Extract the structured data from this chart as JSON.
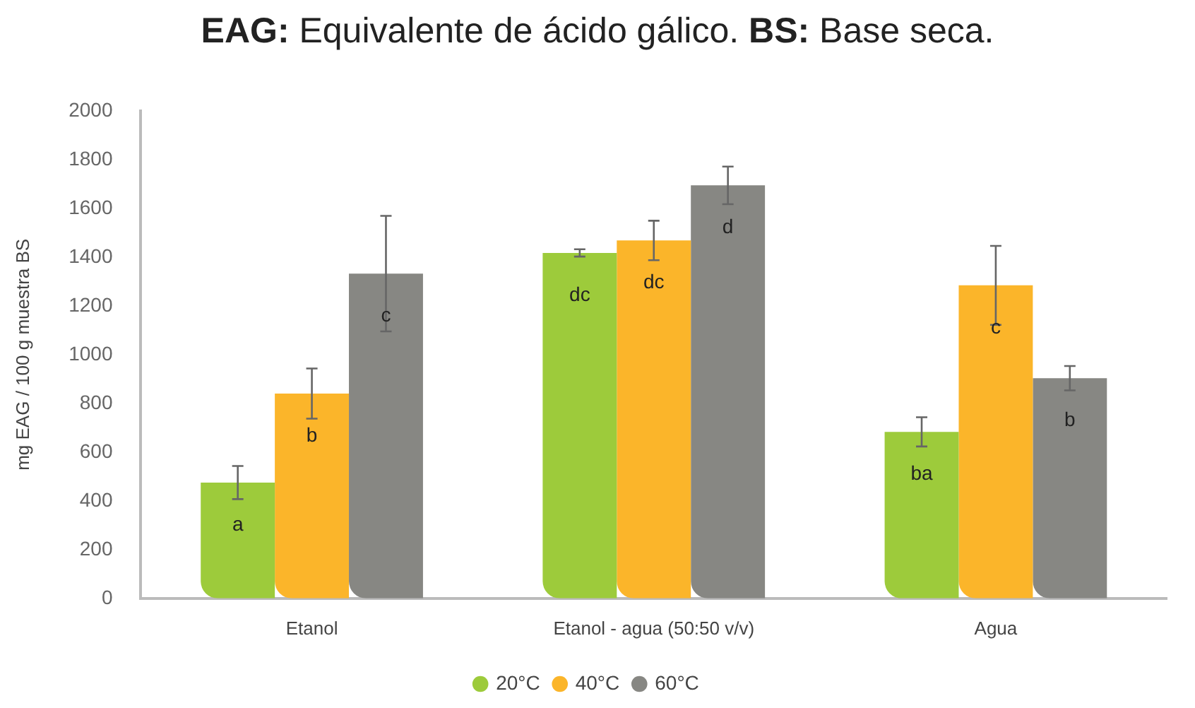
{
  "chart_data": {
    "type": "bar",
    "title": "EAG: Equivalente de ácido gálico. BS: Base seca.",
    "ylabel": "mg EAG / 100 g muestra BS",
    "categories": [
      "Etanol",
      "Etanol - agua (50:50 v/v)",
      "Agua"
    ],
    "series": [
      {
        "name": "20°C",
        "color": "#9dcb3b",
        "values": [
          475,
          1417,
          683
        ],
        "errors": [
          68,
          15,
          60
        ],
        "value_labels": [
          "a",
          "dc",
          "ba"
        ]
      },
      {
        "name": "40°C",
        "color": "#fbb52a",
        "values": [
          840,
          1468,
          1284
        ],
        "errors": [
          103,
          81,
          162
        ],
        "value_labels": [
          "b",
          "dc",
          "c"
        ]
      },
      {
        "name": "60°C",
        "color": "#878783",
        "values": [
          1332,
          1694,
          903
        ],
        "errors": [
          237,
          77,
          50
        ],
        "value_labels": [
          "c",
          "d",
          "b"
        ]
      }
    ],
    "ylim": [
      0,
      2000
    ],
    "yticks": [
      0,
      200,
      400,
      600,
      800,
      1000,
      1200,
      1400,
      1600,
      1800,
      2000
    ],
    "grid": false,
    "legend": "bottom"
  }
}
